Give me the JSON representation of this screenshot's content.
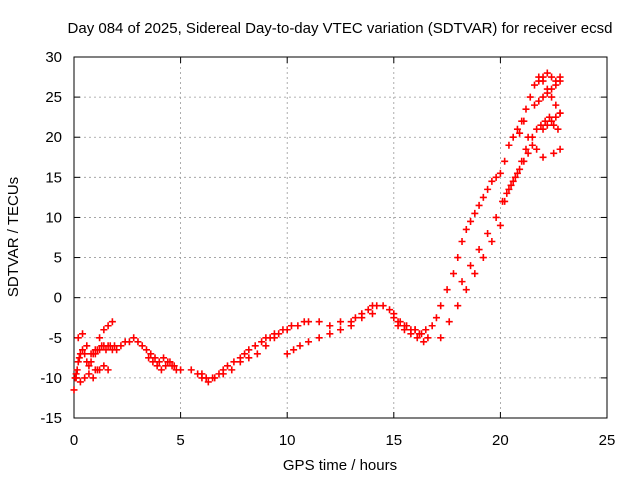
{
  "chart_data": {
    "type": "scatter",
    "title": "Day 084 of 2025, Sidereal Day-to-day VTEC variation (SDTVAR) for receiver ecsd",
    "xlabel": "GPS time / hours",
    "ylabel": "SDTVAR / TECUs",
    "xlim": [
      0,
      25
    ],
    "ylim": [
      -15,
      30
    ],
    "xticks": [
      0,
      5,
      10,
      15,
      20,
      25
    ],
    "yticks": [
      -15,
      -10,
      -5,
      0,
      5,
      10,
      15,
      20,
      25,
      30
    ],
    "grid": true,
    "marker": "+",
    "color": "#ff0000",
    "series": [
      {
        "name": "SDTVAR",
        "x": [
          0.0,
          0.05,
          0.1,
          0.15,
          0.2,
          0.25,
          0.3,
          0.4,
          0.5,
          0.6,
          0.7,
          0.8,
          0.9,
          1.0,
          1.1,
          1.2,
          1.3,
          1.4,
          1.5,
          1.6,
          1.7,
          1.8,
          1.9,
          2.0,
          2.2,
          2.4,
          2.6,
          2.8,
          3.0,
          3.2,
          3.4,
          3.6,
          3.8,
          4.0,
          4.2,
          4.4,
          4.6,
          4.8,
          5.0,
          5.5,
          5.8,
          6.0,
          6.2,
          6.5,
          6.8,
          7.0,
          7.2,
          7.5,
          7.8,
          8.0,
          8.2,
          8.5,
          8.8,
          9.0,
          9.2,
          9.4,
          9.6,
          9.8,
          10.0,
          10.2,
          10.5,
          10.8,
          11.0,
          11.5,
          12.0,
          12.5,
          13.0,
          13.2,
          13.5,
          13.8,
          14.0,
          14.2,
          14.5,
          14.8,
          15.0,
          15.2,
          15.5,
          15.8,
          16.0,
          16.2,
          16.5,
          16.8,
          17.0,
          17.2,
          17.5,
          17.8,
          18.0,
          18.2,
          18.4,
          18.6,
          18.8,
          19.0,
          19.2,
          19.4,
          19.6,
          19.8,
          20.0,
          20.2,
          20.4,
          20.6,
          20.8,
          21.0,
          21.2,
          21.4,
          21.6,
          21.8,
          22.0,
          22.2,
          22.4,
          22.6,
          22.8,
          0.1,
          0.3,
          0.5,
          0.7,
          0.9,
          1.1,
          0.2,
          0.4,
          0.6,
          0.8,
          1.0,
          1.2,
          1.4,
          1.6,
          1.8,
          1.0,
          1.2,
          1.4,
          1.6,
          3.5,
          3.7,
          3.9,
          4.1,
          4.3,
          4.5,
          4.7,
          6.0,
          6.3,
          6.6,
          7.0,
          7.4,
          7.8,
          8.2,
          8.6,
          9.0,
          9.4,
          10.0,
          10.3,
          10.6,
          11.0,
          11.5,
          12.0,
          12.5,
          13.0,
          13.5,
          14.0,
          15.0,
          15.3,
          15.6,
          16.0,
          16.3,
          16.6,
          15.2,
          15.5,
          15.8,
          16.1,
          16.4,
          17.2,
          17.6,
          18.0,
          18.4,
          18.8,
          19.2,
          19.6,
          20.0,
          18.2,
          18.6,
          19.0,
          19.4,
          19.8,
          20.2,
          20.4,
          20.6,
          20.8,
          21.0,
          21.2,
          21.3,
          21.1,
          20.9,
          22.0,
          22.2,
          22.4,
          22.6,
          22.8,
          21.8,
          22.0,
          22.2,
          22.4,
          22.6,
          22.8,
          21.6,
          21.8,
          22.0,
          22.2,
          22.4,
          22.6,
          22.8,
          21.5,
          21.7,
          21.9,
          22.1,
          22.3,
          22.5,
          22.7,
          20.1,
          20.3,
          20.5,
          20.7,
          20.9,
          21.1,
          21.3,
          21.5,
          21.7,
          22.0,
          22.5,
          22.8
        ],
        "y": [
          -11.5,
          -10.0,
          -9.5,
          -9.0,
          -8.0,
          -7.5,
          -7.0,
          -6.5,
          -7.0,
          -8.0,
          -8.5,
          -8.0,
          -7.0,
          -7.0,
          -6.5,
          -6.5,
          -6.0,
          -6.0,
          -6.5,
          -6.0,
          -6.0,
          -6.5,
          -6.0,
          -6.5,
          -6.0,
          -5.5,
          -5.5,
          -5.0,
          -5.5,
          -6.0,
          -6.5,
          -7.0,
          -7.5,
          -8.0,
          -7.5,
          -8.0,
          -8.5,
          -9.0,
          -9.0,
          -9.0,
          -9.5,
          -9.5,
          -10.0,
          -10.0,
          -9.5,
          -9.0,
          -8.5,
          -8.0,
          -7.5,
          -7.0,
          -6.5,
          -6.0,
          -5.5,
          -5.0,
          -5.0,
          -4.5,
          -4.5,
          -4.0,
          -4.0,
          -3.5,
          -3.5,
          -3.0,
          -3.0,
          -3.0,
          -3.5,
          -3.0,
          -3.0,
          -2.5,
          -2.0,
          -1.5,
          -1.0,
          -1.0,
          -1.0,
          -1.5,
          -2.5,
          -3.0,
          -3.5,
          -4.0,
          -4.0,
          -4.5,
          -4.0,
          -3.5,
          -2.5,
          -1.0,
          1.0,
          3.0,
          5.0,
          7.0,
          8.5,
          9.5,
          10.5,
          11.5,
          12.5,
          13.5,
          14.5,
          15.0,
          15.5,
          17.0,
          19.0,
          20.0,
          21.0,
          22.0,
          23.5,
          25.0,
          26.5,
          27.5,
          27.0,
          26.0,
          25.0,
          24.0,
          23.0,
          -10.0,
          -10.5,
          -10.0,
          -9.5,
          -10.0,
          -9.0,
          -5.0,
          -4.5,
          -6.0,
          -7.0,
          -6.5,
          -5.0,
          -4.0,
          -3.5,
          -3.0,
          -9.0,
          -9.0,
          -8.5,
          -9.0,
          -7.5,
          -8.0,
          -8.5,
          -9.0,
          -8.5,
          -8.0,
          -8.5,
          -10.0,
          -10.5,
          -10.0,
          -9.5,
          -9.0,
          -8.0,
          -7.5,
          -7.0,
          -6.0,
          -5.0,
          -7.0,
          -6.5,
          -6.0,
          -5.5,
          -5.0,
          -4.5,
          -4.0,
          -3.5,
          -2.5,
          -2.0,
          -2.0,
          -3.0,
          -3.5,
          -4.0,
          -4.5,
          -5.0,
          -3.5,
          -4.0,
          -4.5,
          -5.0,
          -5.5,
          -5.0,
          -3.0,
          -1.0,
          1.0,
          3.0,
          5.0,
          7.0,
          9.0,
          2.0,
          4.0,
          6.0,
          8.0,
          10.0,
          12.0,
          13.5,
          14.5,
          15.5,
          17.0,
          18.5,
          20.0,
          22.0,
          20.5,
          21.0,
          21.5,
          22.0,
          22.5,
          23.0,
          27.0,
          27.5,
          28.0,
          27.5,
          27.0,
          27.5,
          24.0,
          24.5,
          25.0,
          25.5,
          26.0,
          26.5,
          27.0,
          20.0,
          21.0,
          21.5,
          22.0,
          22.5,
          21.5,
          21.0,
          12.0,
          13.0,
          14.0,
          15.0,
          16.0,
          17.0,
          18.0,
          19.0,
          18.5,
          17.5,
          18.0,
          18.5
        ]
      }
    ]
  }
}
